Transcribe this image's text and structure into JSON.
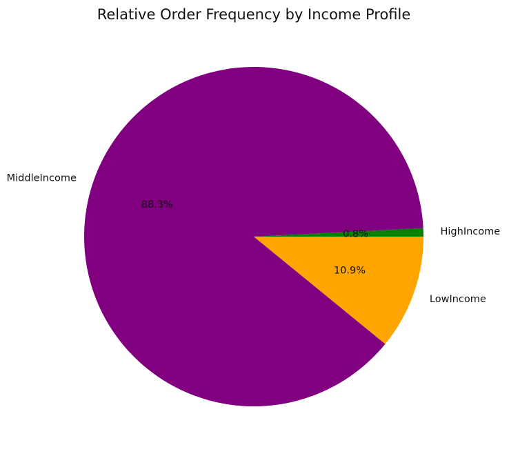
{
  "chart_data": {
    "type": "pie",
    "title": "Relative Order Frequency by Income Profile",
    "slices": [
      {
        "label": "HighIncome",
        "value": 0.8,
        "pct_text": "0.8%",
        "color": "#008000"
      },
      {
        "label": "MiddleIncome",
        "value": 88.3,
        "pct_text": "88.3%",
        "color": "#800080"
      },
      {
        "label": "LowIncome",
        "value": 10.9,
        "pct_text": "10.9%",
        "color": "#FFA500"
      }
    ]
  }
}
